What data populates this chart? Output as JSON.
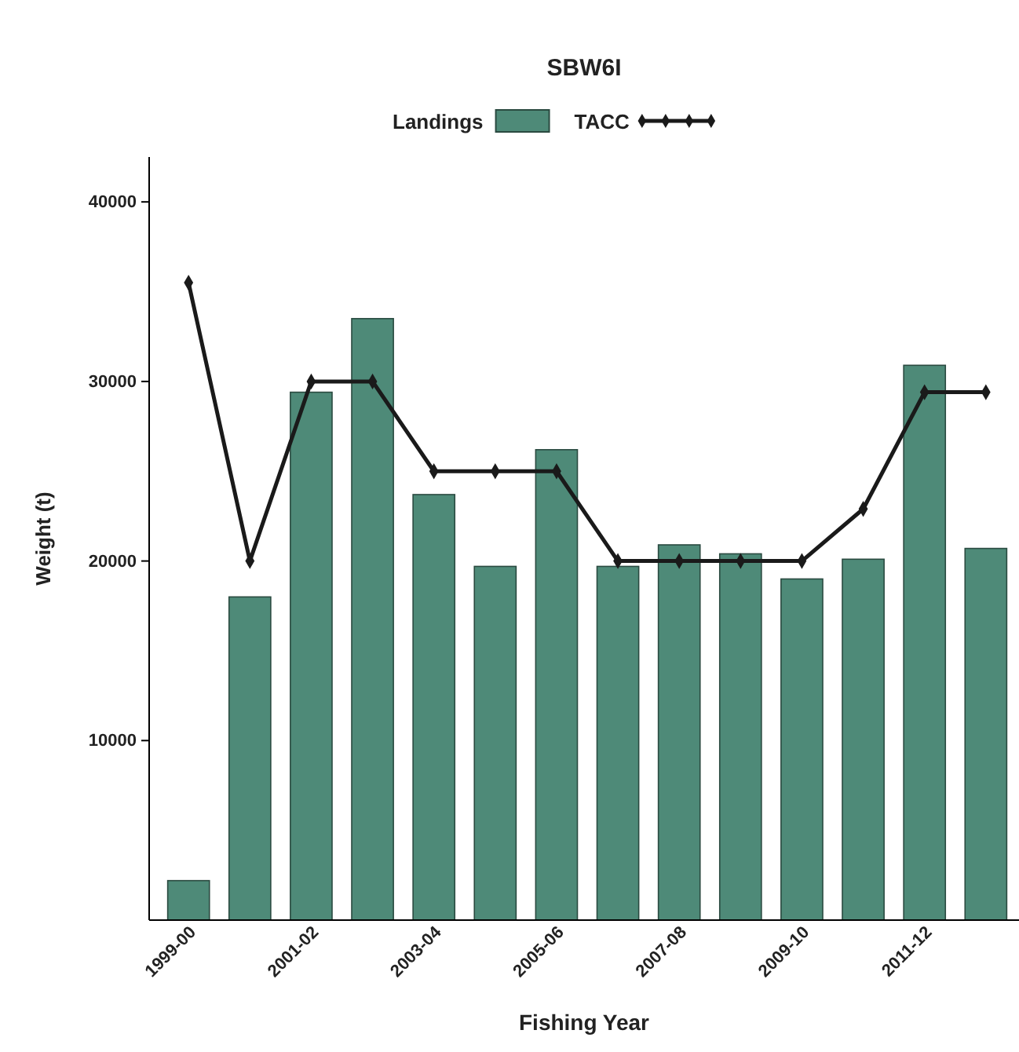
{
  "chart_data": {
    "type": "bar",
    "title": "SBW6I",
    "xlabel": "Fishing Year",
    "ylabel": "Weight (t)",
    "categories": [
      "1999-00",
      null,
      "2001-02",
      null,
      "2003-04",
      null,
      "2005-06",
      null,
      "2007-08",
      null,
      "2009-10",
      null,
      "2011-12",
      null
    ],
    "series": [
      {
        "name": "Landings",
        "color": "#4e8a78",
        "values": [
          2200,
          18000,
          29400,
          33500,
          23700,
          19700,
          26200,
          19700,
          20900,
          20400,
          19000,
          20100,
          30900,
          20700
        ]
      },
      {
        "name": "TACC",
        "type": "line",
        "color": "#1a1a1a",
        "marker": "diamond",
        "values": [
          35500,
          20000,
          30000,
          30000,
          25000,
          25000,
          25000,
          20000,
          20000,
          20000,
          20000,
          22900,
          29400,
          29400
        ]
      }
    ],
    "ylim": [
      0,
      42500
    ],
    "yticks": [
      10000,
      20000,
      30000,
      40000
    ],
    "legend": "top"
  }
}
